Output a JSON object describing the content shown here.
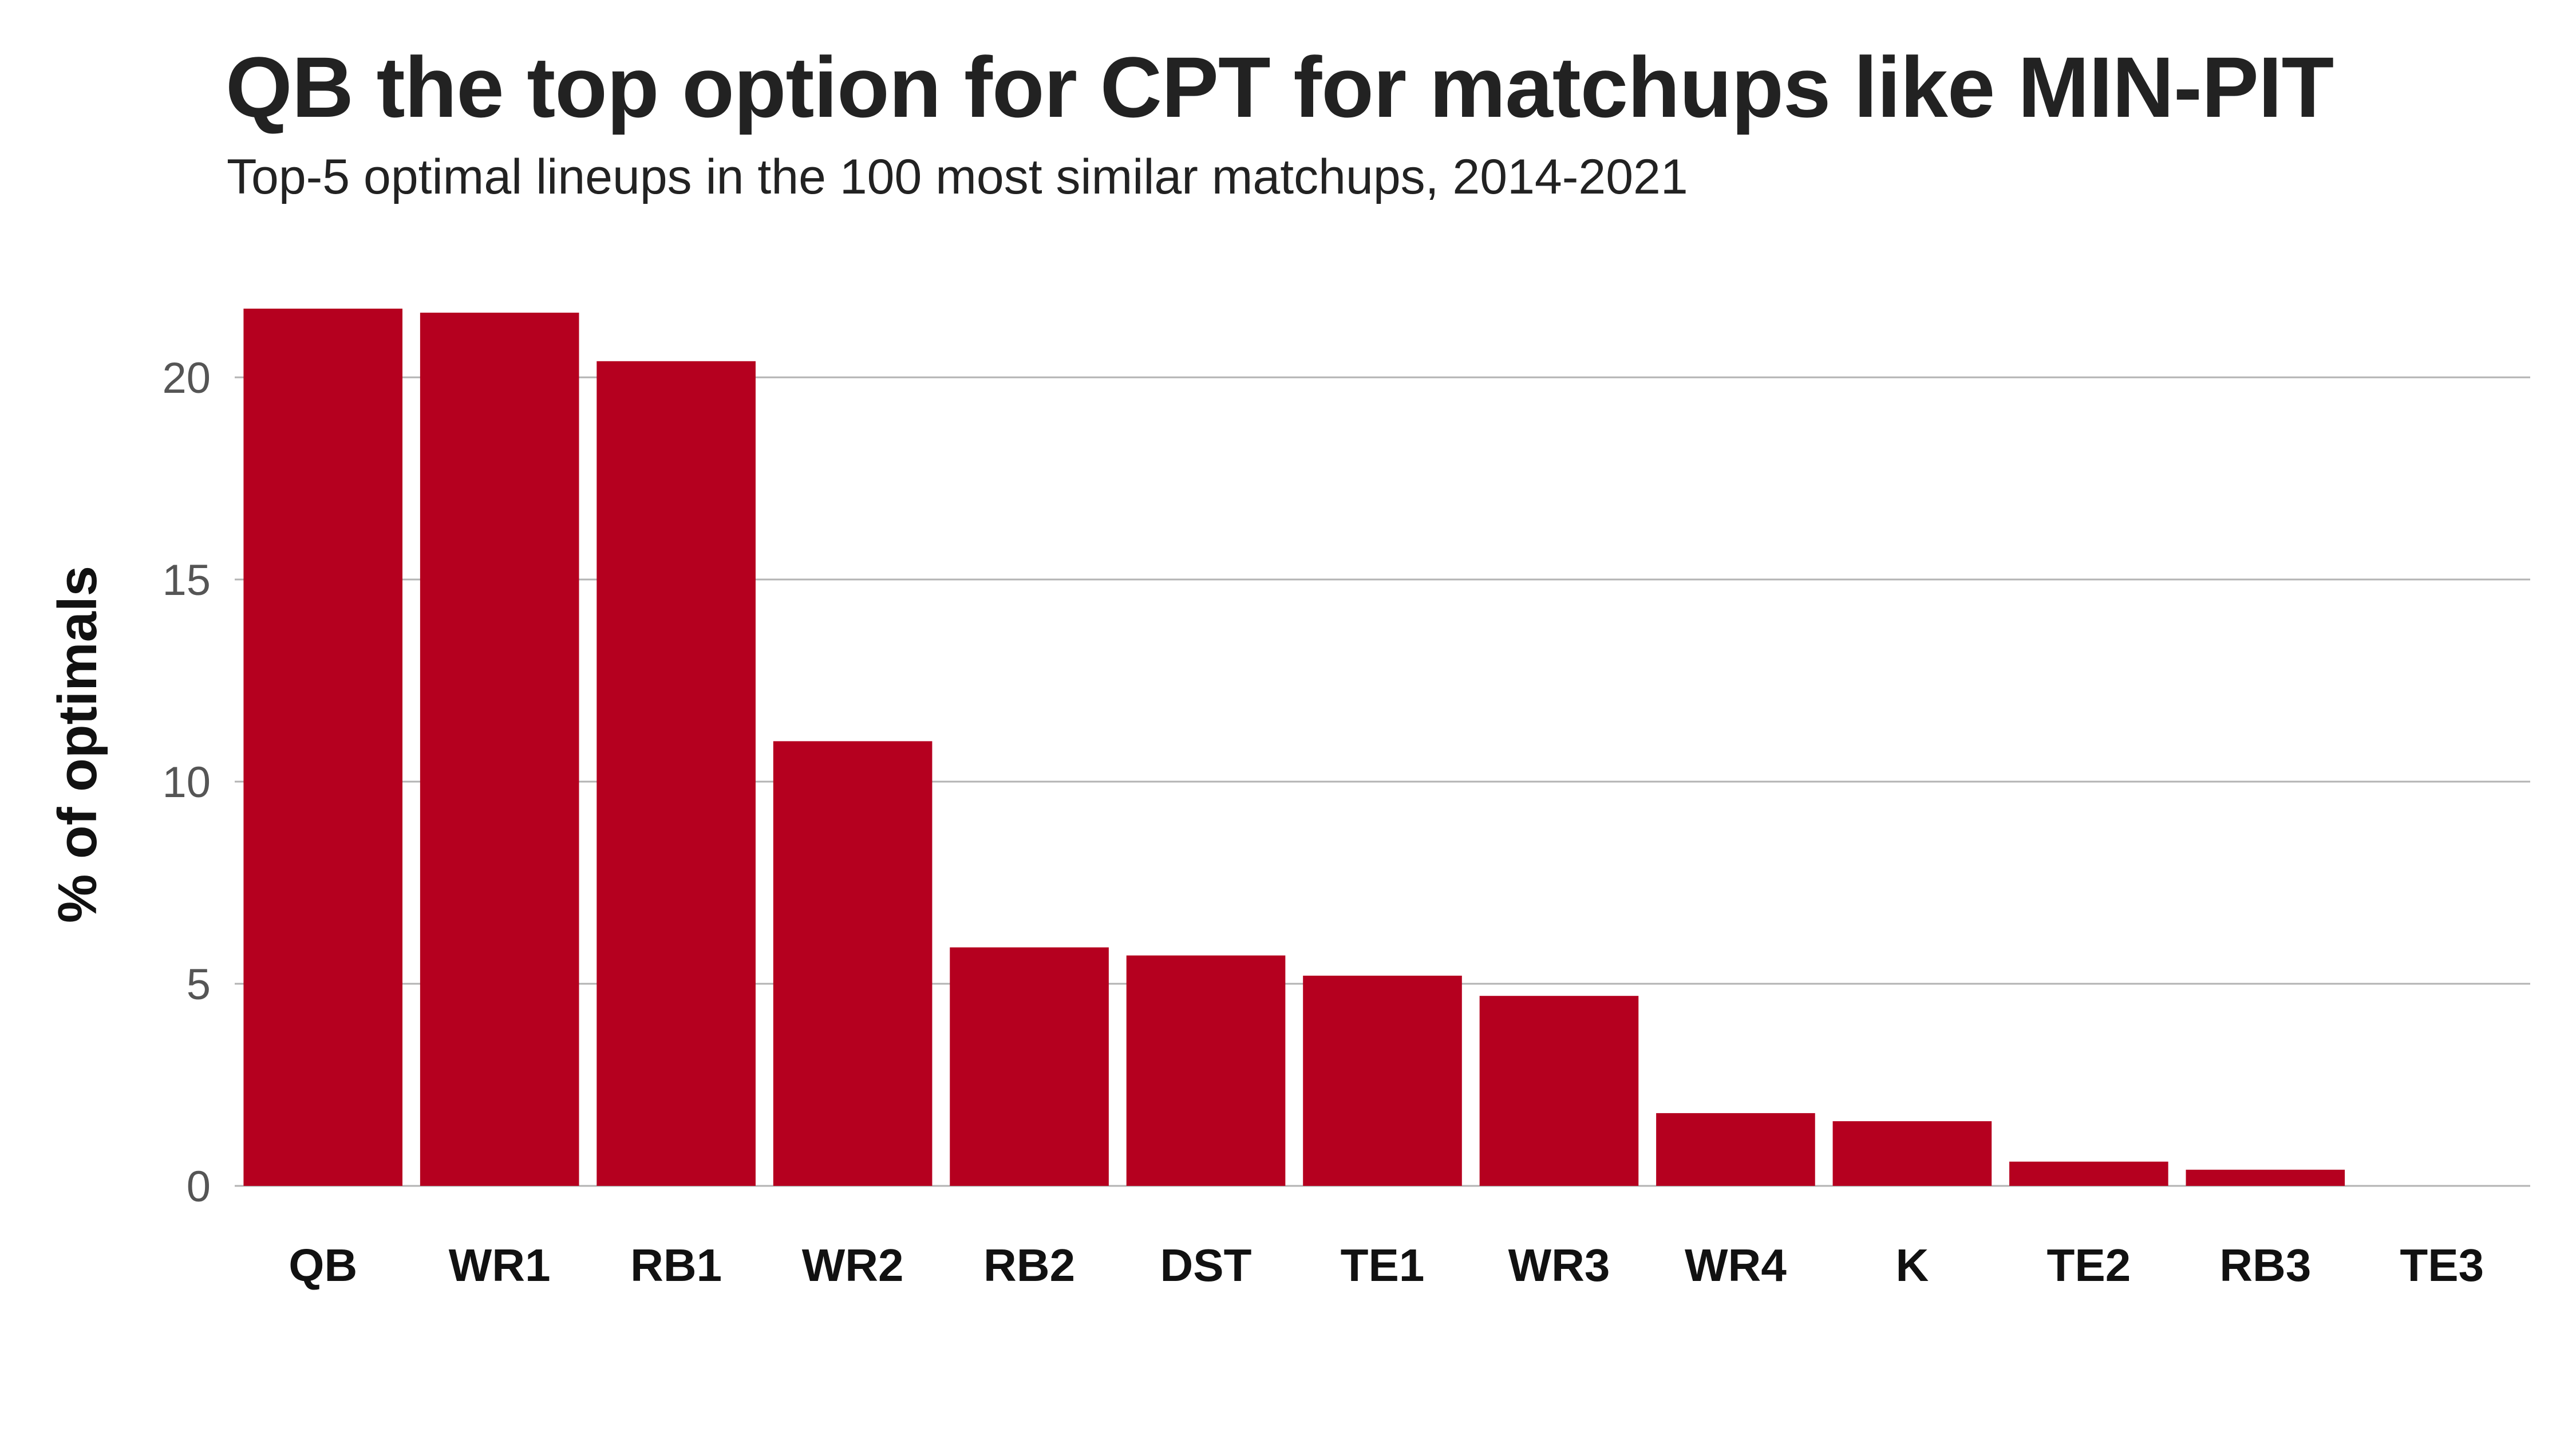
{
  "chart_data": {
    "type": "bar",
    "title": "QB the top option for CPT for matchups like MIN-PIT",
    "subtitle": "Top-5 optimal lineups in the 100 most similar matchups, 2014-2021",
    "xlabel": "",
    "ylabel": "% of optimals",
    "categories": [
      "QB",
      "WR1",
      "RB1",
      "WR2",
      "RB2",
      "DST",
      "TE1",
      "WR3",
      "WR4",
      "K",
      "TE2",
      "RB3",
      "TE3"
    ],
    "values": [
      21.7,
      21.6,
      20.4,
      11.0,
      5.9,
      5.7,
      5.2,
      4.7,
      1.8,
      1.6,
      0.6,
      0.4,
      0.0
    ],
    "yticks": [
      0,
      5,
      10,
      15,
      20
    ],
    "ylim": [
      0,
      21.7
    ],
    "grid": true,
    "legend": "none",
    "bar_color": "#b5001f",
    "grid_color": "#b3b3b3"
  }
}
